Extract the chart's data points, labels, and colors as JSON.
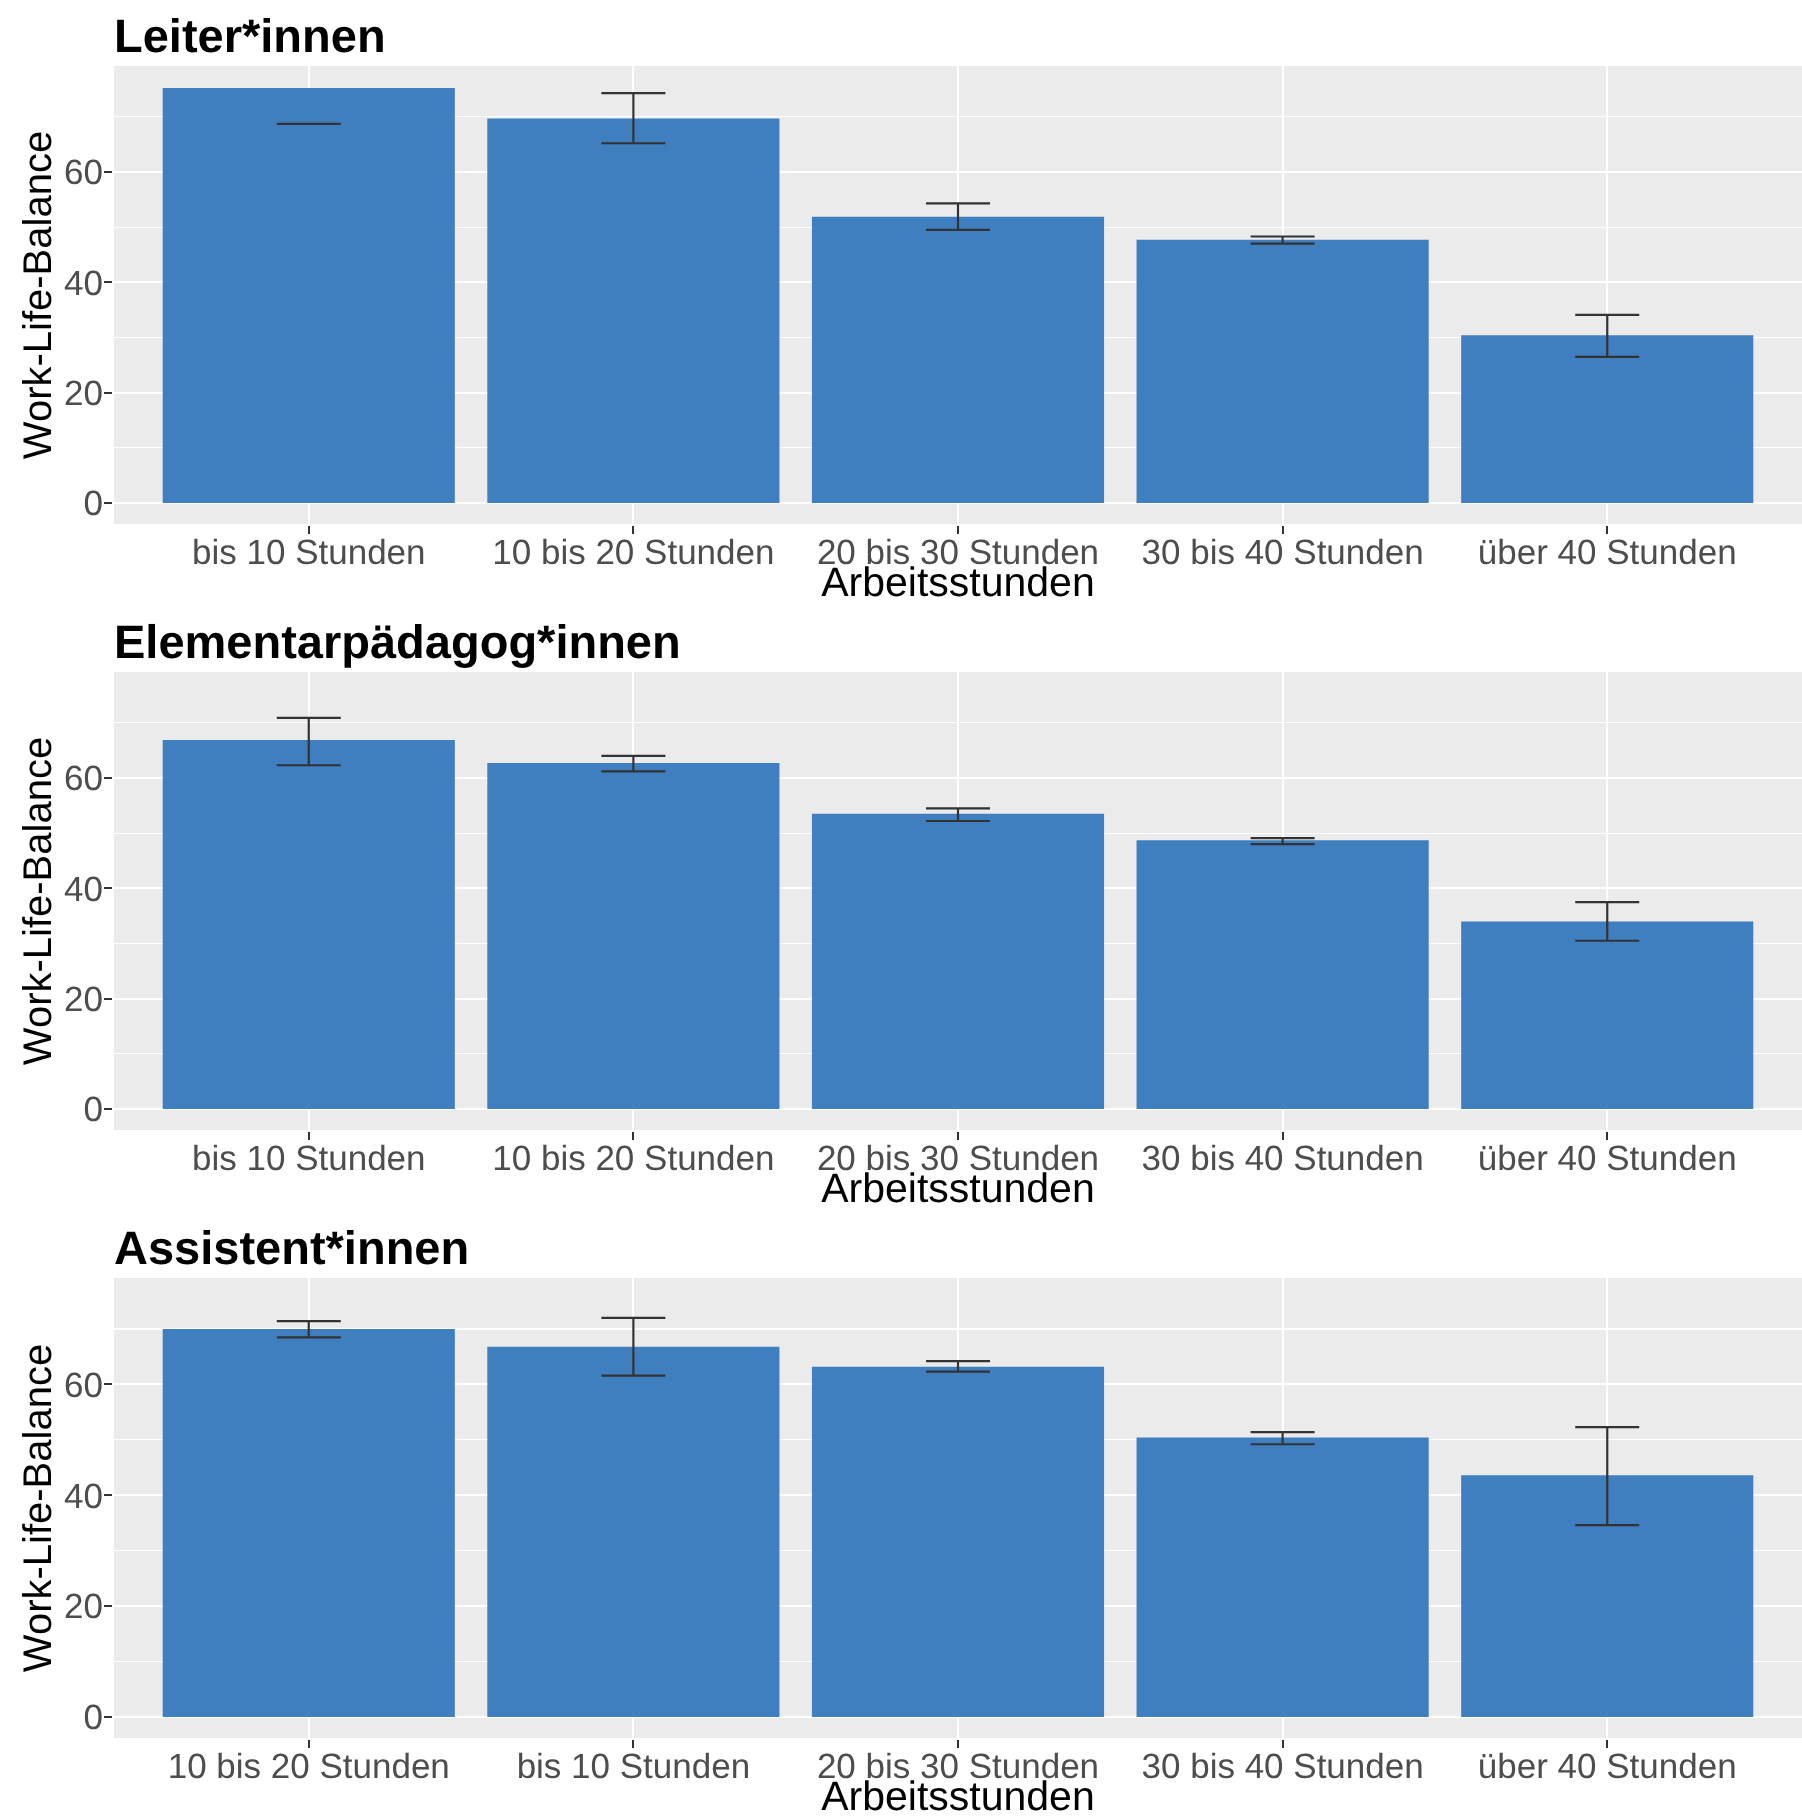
{
  "chart_data": [
    {
      "type": "bar",
      "title": "Leiter*innen",
      "xlabel": "Arbeitsstunden",
      "ylabel": "Work-Life-Balance",
      "categories": [
        "bis 10 Stunden",
        "10 bis 20 Stunden",
        "20 bis 30 Stunden",
        "30 bis 40 Stunden",
        "über 40 Stunden"
      ],
      "values": [
        75.2,
        69.7,
        51.9,
        47.7,
        30.4
      ],
      "errors": [
        [
          68.7,
          68.7
        ],
        [
          65.2,
          74.3
        ],
        [
          49.5,
          54.3
        ],
        [
          47.0,
          48.3
        ],
        [
          26.5,
          34.1
        ]
      ],
      "color": "#3f7fbf",
      "ylim": [
        -3.8,
        79.2
      ],
      "yticks": [
        0,
        {
          "value": 10,
          "label": null
        },
        20,
        {
          "value": 30,
          "label": null
        },
        40,
        {
          "value": 50,
          "label": null
        },
        60,
        {
          "value": 70,
          "label": null
        }
      ],
      "grid": true
    },
    {
      "type": "bar",
      "title": "Elementarpädagog*innen",
      "xlabel": "Arbeitsstunden",
      "ylabel": "Work-Life-Balance",
      "categories": [
        "bis 10 Stunden",
        "10 bis 20 Stunden",
        "20 bis 30 Stunden",
        "30 bis 40 Stunden",
        "über 40 Stunden"
      ],
      "values": [
        66.9,
        62.7,
        53.5,
        48.7,
        34.0
      ],
      "errors": [
        [
          62.3,
          70.9
        ],
        [
          61.2,
          64.0
        ],
        [
          52.2,
          54.5
        ],
        [
          48.0,
          49.1
        ],
        [
          30.5,
          37.5
        ]
      ],
      "color": "#3f7fbf",
      "ylim": [
        -3.8,
        79.2
      ],
      "yticks": [
        0,
        {
          "value": 10,
          "label": null
        },
        20,
        {
          "value": 30,
          "label": null
        },
        40,
        {
          "value": 50,
          "label": null
        },
        60,
        {
          "value": 70,
          "label": null
        }
      ],
      "grid": true
    },
    {
      "type": "bar",
      "title": "Assistent*innen",
      "xlabel": "Arbeitsstunden",
      "ylabel": "Work-Life-Balance",
      "categories": [
        "10 bis 20 Stunden",
        "bis 10 Stunden",
        "20 bis 30 Stunden",
        "30 bis 40 Stunden",
        "über 40 Stunden"
      ],
      "values": [
        70.0,
        66.8,
        63.2,
        50.4,
        43.6
      ],
      "errors": [
        [
          68.5,
          71.4
        ],
        [
          61.6,
          72.0
        ],
        [
          62.3,
          64.2
        ],
        [
          49.2,
          51.4
        ],
        [
          34.6,
          52.3
        ]
      ],
      "color": "#3f7fbf",
      "ylim": [
        -3.8,
        79.2
      ],
      "yticks": [
        0,
        {
          "value": 10,
          "label": null
        },
        20,
        {
          "value": 30,
          "label": null
        },
        40,
        {
          "value": 50,
          "label": null
        },
        60,
        {
          "value": 70,
          "label": null
        }
      ],
      "grid": true
    }
  ]
}
